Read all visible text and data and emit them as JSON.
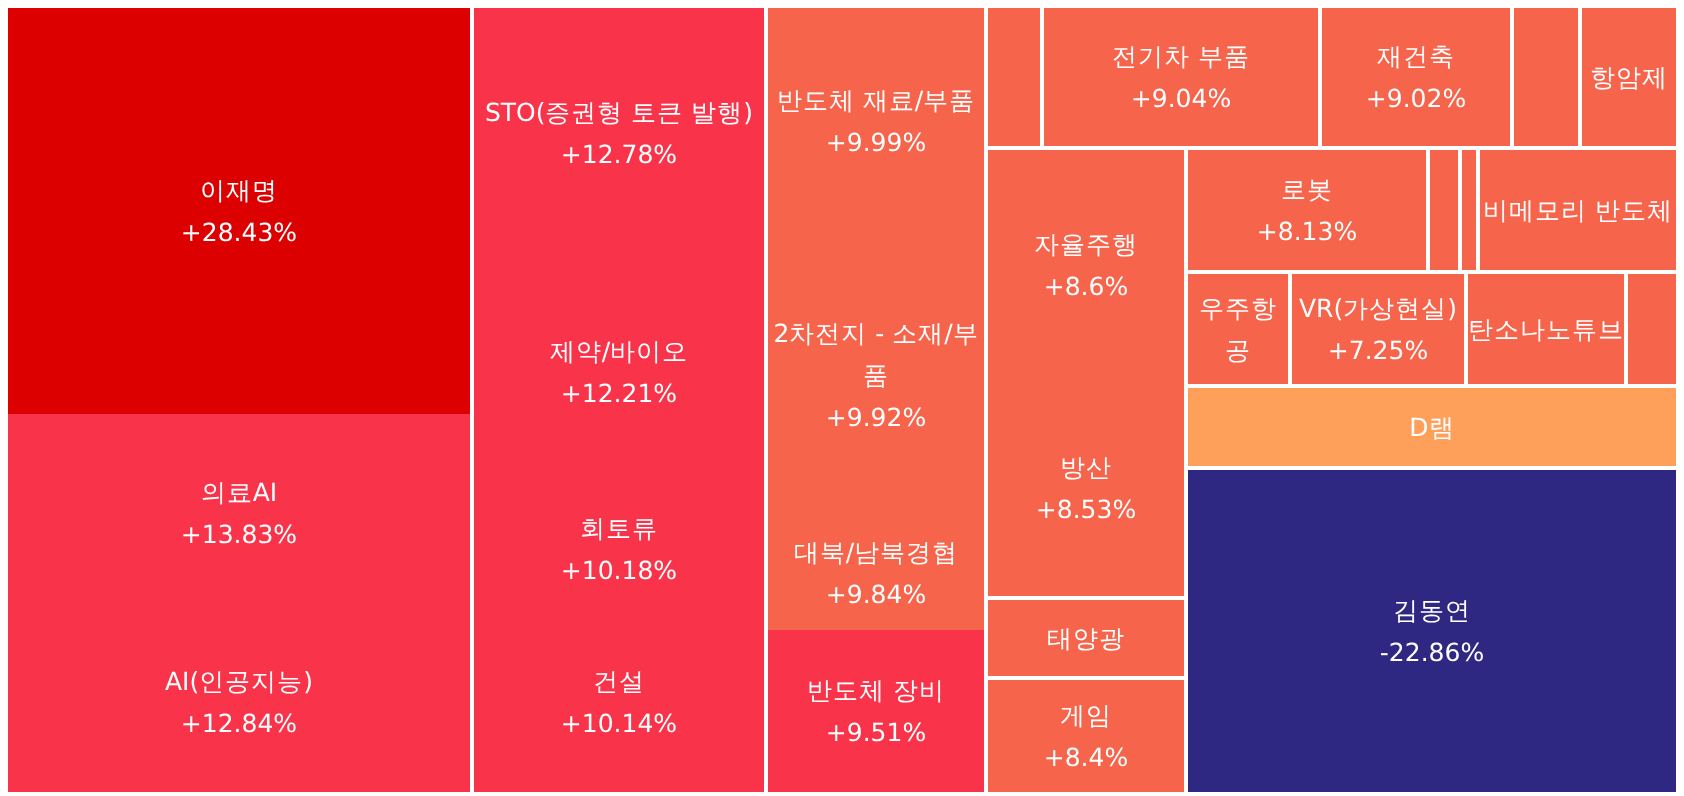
{
  "chart_data": {
    "type": "other",
    "categories": [
      "이재명",
      "의료AI",
      "AI(인공지능)",
      "STO(증권형 토큰 발행)",
      "제약/바이오",
      "회토류",
      "건설",
      "반도체 재료/부품",
      "2차전지 - 소재/부품",
      "대북/남북경협",
      "반도체 장비",
      null,
      "전기차 부품",
      "재건축",
      null,
      "항암제",
      "자율주행",
      "방산",
      "태양광",
      "게임",
      "로봇",
      null,
      null,
      "비메모리 반도체",
      "우주항공",
      "VR(가상현실)",
      "탄소나노튜브",
      null,
      "D램",
      "김동연"
    ],
    "values": [
      28.43,
      13.83,
      12.84,
      12.78,
      12.21,
      10.18,
      10.14,
      9.99,
      9.92,
      9.84,
      9.51,
      null,
      9.04,
      9.02,
      null,
      null,
      8.6,
      8.53,
      null,
      8.4,
      8.13,
      null,
      null,
      null,
      null,
      7.25,
      null,
      null,
      null,
      -22.86
    ],
    "value_labels": [
      "+28.43%",
      "+13.83%",
      "+12.84%",
      "+12.78%",
      "+12.21%",
      "+10.18%",
      "+10.14%",
      "+9.99%",
      "+9.92%",
      "+9.84%",
      "+9.51%",
      null,
      "+9.04%",
      "+9.02%",
      null,
      null,
      "+8.6%",
      "+8.53%",
      null,
      "+8.4%",
      "+8.13%",
      null,
      null,
      null,
      null,
      "+7.25%",
      null,
      null,
      null,
      "-22.86%"
    ],
    "colors": [
      "#dc0000",
      "#f9344a",
      "#f9344a",
      "#f9344a",
      "#f9344a",
      "#f9344a",
      "#f9344a",
      "#f5644b",
      "#f5644b",
      "#f5644b",
      "#f9344a",
      "#f5644b",
      "#f5644b",
      "#f5644b",
      "#f5644b",
      "#f5644b",
      "#f5644b",
      "#f5644b",
      "#f5644b",
      "#f5644b",
      "#f5644b",
      "#f5644b",
      "#f5644b",
      "#f5644b",
      "#f5644b",
      "#f5644b",
      "#f5644b",
      "#f5644b",
      "#ffa05a",
      "#2e2882"
    ]
  }
}
